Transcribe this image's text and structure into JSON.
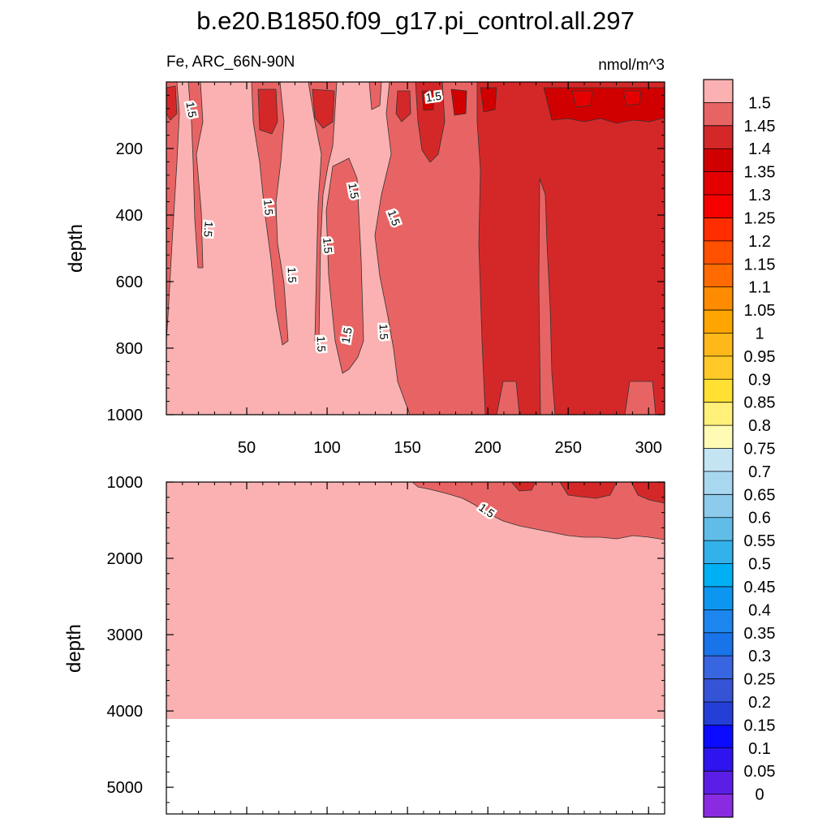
{
  "chart_data": {
    "type": "heatmap",
    "title": "b.e20.B1850.f09_g17.pi_control.all.297",
    "subtitle_left": "Fe, ARC_66N-90N",
    "subtitle_right": "nmol/m^3",
    "colorbar": {
      "levels": [
        "1.5",
        "1.45",
        "1.4",
        "1.35",
        "1.3",
        "1.25",
        "1.2",
        "1.15",
        "1.1",
        "1.05",
        "1",
        "0.95",
        "0.9",
        "0.85",
        "0.8",
        "0.75",
        "0.7",
        "0.65",
        "0.6",
        "0.55",
        "0.5",
        "0.45",
        "0.4",
        "0.35",
        "0.3",
        "0.25",
        "0.2",
        "0.15",
        "0.1",
        "0.05",
        "0"
      ],
      "colors": [
        "#fbb1b1",
        "#e86464",
        "#d42828",
        "#d10000",
        "#e40000",
        "#f60000",
        "#ff2d00",
        "#ff5000",
        "#ff6b00",
        "#ff8c00",
        "#ffa500",
        "#ffb819",
        "#ffca28",
        "#ffe033",
        "#fff07a",
        "#fffbb4",
        "#c4e4f4",
        "#a8d8f0",
        "#8ccbec",
        "#5fbde8",
        "#33b1ea",
        "#00b0f5",
        "#0d96f0",
        "#1c86ee",
        "#1874e8",
        "#3865e0",
        "#3553d5",
        "#243ed8",
        "#0b0bff",
        "#2f14f0",
        "#5a1ee6",
        "#8a2be2"
      ]
    },
    "panels": [
      {
        "name": "upper",
        "ylabel": "depth",
        "ylim": [
          0,
          1000
        ],
        "xlim": [
          0,
          310
        ],
        "xticks": [
          "50",
          "100",
          "150",
          "200",
          "250",
          "300"
        ],
        "xtick_values": [
          50,
          100,
          150,
          200,
          250,
          300
        ],
        "yticks": [
          "200",
          "400",
          "600",
          "800",
          "1000"
        ],
        "ytick_values": [
          200,
          400,
          600,
          800,
          1000
        ],
        "contour_labels": [
          "1.5",
          "1.5",
          "1.5",
          "1.5",
          "1.5",
          "1.5",
          "1.5",
          "1.5",
          "1.5",
          "1.5",
          "1.5",
          "1.5"
        ],
        "background_level": "1.5",
        "fill_levels": [
          "1.45",
          "1.4",
          "1.35"
        ]
      },
      {
        "name": "lower",
        "ylabel": "depth",
        "ylim": [
          1000,
          5350
        ],
        "xlim": [
          0,
          310
        ],
        "yticks": [
          "1000",
          "2000",
          "3000",
          "4000",
          "5000"
        ],
        "ytick_values": [
          1000,
          2000,
          3000,
          4000,
          5000
        ],
        "sea_floor_depth": 4120,
        "contour_labels": [
          "1.5"
        ],
        "background_level": "1.5",
        "fill_levels": [
          "1.45",
          "1.4"
        ]
      }
    ]
  }
}
